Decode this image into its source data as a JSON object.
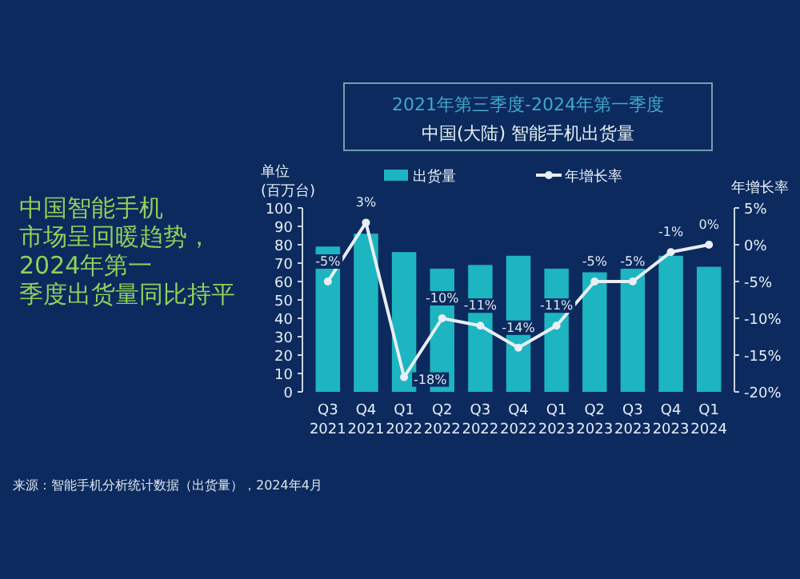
{
  "chart_data": {
    "type": "bar",
    "title": "2021年第三季度-2024年第一季度",
    "subtitle": "中国(大陆) 智能手机出货量",
    "ylabel": "单位\n(百万台)",
    "y2label": "年增长率",
    "categories": [
      "Q3 2021",
      "Q4 2021",
      "Q1 2022",
      "Q2 2022",
      "Q3 2022",
      "Q4 2022",
      "Q1 2023",
      "Q2 2023",
      "Q3 2023",
      "Q4 2023",
      "Q1 2024"
    ],
    "series": [
      {
        "name": "出货量",
        "color": "#1cb5c0",
        "values": [
          79,
          86,
          76,
          67,
          69,
          74,
          67,
          65,
          67,
          74,
          68
        ]
      },
      {
        "name": "年增长率",
        "type": "line",
        "axis": "y2",
        "color": "#e8eef5",
        "marker": "circle",
        "values": [
          -5,
          3,
          -18,
          -10,
          -11,
          -14,
          -11,
          -5,
          -5,
          -1,
          0
        ],
        "value_labels": [
          "-5%",
          "3%",
          "-18%",
          "-10%",
          "-11%",
          "-14%",
          "-11%",
          "-5%",
          "-5%",
          "-1%",
          "0%"
        ]
      }
    ],
    "ylim": [
      0,
      100
    ],
    "yticks": [
      0,
      10,
      20,
      30,
      40,
      50,
      60,
      70,
      80,
      90,
      100
    ],
    "y2lim": [
      -20,
      5
    ],
    "y2ticks": [
      {
        "value": -20,
        "label": "-20%"
      },
      {
        "value": -15,
        "label": "-15%"
      },
      {
        "value": -10,
        "label": "-10%"
      },
      {
        "value": -5,
        "label": "-5%"
      },
      {
        "value": 0,
        "label": "0%"
      },
      {
        "value": 5,
        "label": "5%"
      }
    ],
    "legend": "top",
    "annotations": [
      "中国智能手机市场呈回暖趋势，2024年第一季度出货量同比持平",
      "来源：智能手机分析统计数据（出货量），2024年4月"
    ]
  }
}
